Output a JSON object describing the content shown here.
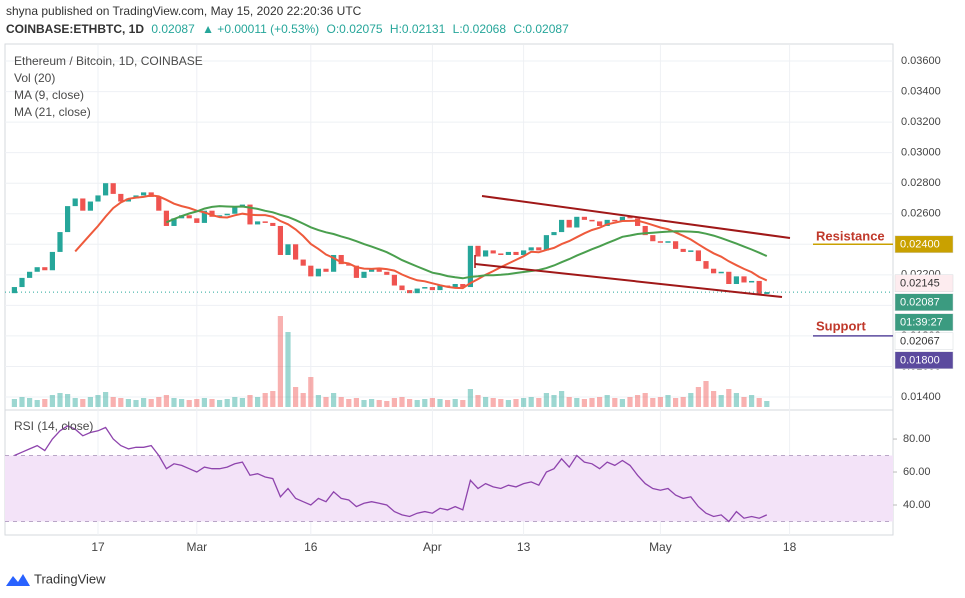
{
  "header": {
    "publisher": "shyna published on TradingView.com, May 15, 2020 22:20:36 UTC",
    "symbol": "COINBASE:ETHBTC, 1D",
    "last": "0.02087",
    "change": "▲ +0.00011 (+0.53%)",
    "o": "O:0.02075",
    "h": "H:0.02131",
    "l": "L:0.02068",
    "c": "C:0.02087"
  },
  "chart_data": [
    {
      "type": "candlestick",
      "title": "Ethereum / Bitcoin, 1D, COINBASE",
      "categories": [
        null,
        null,
        null,
        null,
        null,
        null,
        null,
        null,
        null,
        null,
        null,
        "17",
        null,
        null,
        null,
        null,
        null,
        null,
        null,
        null,
        null,
        null,
        null,
        null,
        "Mar",
        null,
        null,
        null,
        null,
        null,
        null,
        null,
        null,
        null,
        null,
        null,
        null,
        null,
        null,
        "16",
        null,
        null,
        null,
        null,
        null,
        null,
        null,
        null,
        null,
        null,
        null,
        null,
        null,
        null,
        null,
        "Apr",
        null,
        null,
        null,
        null,
        null,
        null,
        null,
        null,
        null,
        null,
        null,
        "13",
        null,
        null,
        null,
        null,
        null,
        null,
        null,
        null,
        null,
        null,
        null,
        null,
        null,
        null,
        null,
        null,
        null,
        "May",
        null,
        null,
        null,
        null,
        null,
        null,
        null,
        null,
        null,
        null,
        null,
        null,
        null,
        null,
        null,
        null,
        "18"
      ],
      "open": [
        0.0208,
        0.0212,
        0.0218,
        0.0222,
        0.0225,
        0.0223,
        0.0235,
        0.0248,
        0.0265,
        0.027,
        0.0262,
        0.0268,
        0.0272,
        0.028,
        0.0273,
        0.0268,
        0.027,
        0.0272,
        0.0274,
        0.0271,
        0.0262,
        0.0252,
        0.0257,
        0.0259,
        0.0257,
        0.0254,
        0.0262,
        0.0258,
        0.0259,
        0.026,
        0.0265,
        0.0266,
        0.0253,
        0.0255,
        0.0254,
        0.0252,
        0.0233,
        0.024,
        0.023,
        0.0226,
        0.0219,
        0.0224,
        0.0222,
        0.0233,
        0.0227,
        0.0226,
        0.0218,
        0.0222,
        0.0224,
        0.0222,
        0.022,
        0.0213,
        0.021,
        0.0208,
        0.0211,
        0.0212,
        0.021,
        0.0213,
        0.0212,
        0.0214,
        0.0212,
        0.0239,
        0.0232,
        0.0236,
        0.0234,
        0.0233,
        0.0235,
        0.0233,
        0.0236,
        0.0238,
        0.0236,
        0.0246,
        0.0248,
        0.0256,
        0.0251,
        0.0258,
        0.0256,
        0.0255,
        0.0252,
        0.0256,
        0.0255,
        0.0258,
        0.0257,
        0.0252,
        0.0246,
        0.0242,
        0.0241,
        0.0242,
        0.0237,
        0.0235,
        0.0236,
        0.0229,
        0.0224,
        0.0221,
        0.0222,
        0.0214,
        0.0219,
        0.0215,
        0.0216,
        0.02075,
        null,
        null,
        null
      ],
      "close": [
        0.0212,
        0.0218,
        0.0222,
        0.0225,
        0.0223,
        0.0235,
        0.0248,
        0.0265,
        0.027,
        0.0262,
        0.0268,
        0.0272,
        0.028,
        0.0273,
        0.0268,
        0.027,
        0.0272,
        0.0274,
        0.0271,
        0.0262,
        0.0252,
        0.0257,
        0.0259,
        0.0257,
        0.0254,
        0.0262,
        0.0258,
        0.0259,
        0.026,
        0.0265,
        0.0266,
        0.0253,
        0.0255,
        0.0254,
        0.0252,
        0.0233,
        0.024,
        0.023,
        0.0226,
        0.0219,
        0.0224,
        0.0222,
        0.0233,
        0.0227,
        0.0226,
        0.0218,
        0.0222,
        0.0224,
        0.0222,
        0.022,
        0.0213,
        0.021,
        0.0208,
        0.0211,
        0.0212,
        0.021,
        0.0213,
        0.0212,
        0.0214,
        0.0212,
        0.0239,
        0.0232,
        0.0236,
        0.0234,
        0.0233,
        0.0235,
        0.0233,
        0.0236,
        0.0238,
        0.0236,
        0.0246,
        0.0248,
        0.0256,
        0.0251,
        0.0258,
        0.0256,
        0.0255,
        0.0252,
        0.0256,
        0.0255,
        0.0258,
        0.0257,
        0.0252,
        0.0246,
        0.0242,
        0.0241,
        0.0242,
        0.0237,
        0.0235,
        0.0236,
        0.0229,
        0.0224,
        0.0221,
        0.0222,
        0.0214,
        0.0219,
        0.0215,
        0.0216,
        0.02075,
        0.02087,
        null,
        null,
        null
      ],
      "up_color": "#26a69a",
      "down_color": "#ef5350",
      "series": [
        {
          "name": "MA (9, close)",
          "period": 9,
          "color": "#ee5a3c"
        },
        {
          "name": "MA (21, close)",
          "period": 21,
          "color": "#4a9f4e"
        }
      ],
      "ylim": [
        0.01328,
        0.03705
      ],
      "yticks": [
        {
          "value": 0.014,
          "label": "0.01400"
        },
        {
          "value": 0.016,
          "label": "0.01600"
        },
        {
          "value": 0.018,
          "label": "0.01800"
        },
        {
          "value": 0.02,
          "label": "0.02000"
        },
        {
          "value": 0.022,
          "label": "0.02200"
        },
        {
          "value": 0.024,
          "label": "0.02400"
        },
        {
          "value": 0.026,
          "label": "0.02600"
        },
        {
          "value": 0.028,
          "label": "0.02800"
        },
        {
          "value": 0.03,
          "label": "0.03000"
        },
        {
          "value": 0.032,
          "label": "0.03200"
        },
        {
          "value": 0.034,
          "label": "0.03400"
        },
        {
          "value": 0.036,
          "label": "0.03600"
        }
      ],
      "grid": true,
      "resistance": "Resistance",
      "support": "Support",
      "price_labels": [
        {
          "value": 0.024,
          "label": "0.02400",
          "color": "#c9a100",
          "text_color": "#ffffff"
        },
        {
          "value": 0.02145,
          "label": "0.02145",
          "color": "#fdecef",
          "text_color": "#333333"
        },
        {
          "value": 0.02087,
          "label": "0.02087",
          "color": "#3b9b80",
          "text_color": "#ffffff"
        },
        {
          "label": "01:39:27",
          "color": "#3b9b80",
          "text_color": "#ffffff"
        },
        {
          "value": 0.02067,
          "label": "0.02067",
          "color": "#ffffff",
          "text_color": "#333333"
        },
        {
          "value": 0.018,
          "label": "0.01800",
          "color": "#5b4a9e",
          "text_color": "#ffffff"
        }
      ]
    },
    {
      "type": "bar",
      "title": "Vol (20)",
      "values": [
        8,
        10,
        9,
        7,
        8,
        12,
        14,
        13,
        9,
        8,
        10,
        12,
        15,
        10,
        9,
        8,
        7,
        9,
        8,
        10,
        12,
        9,
        8,
        7,
        8,
        9,
        8,
        7,
        8,
        10,
        9,
        12,
        10,
        14,
        16,
        91,
        75,
        20,
        14,
        30,
        12,
        10,
        14,
        10,
        8,
        9,
        7,
        8,
        7,
        6,
        9,
        10,
        8,
        7,
        8,
        9,
        8,
        7,
        8,
        7,
        18,
        12,
        10,
        9,
        8,
        7,
        8,
        9,
        10,
        9,
        14,
        12,
        16,
        10,
        9,
        8,
        9,
        10,
        12,
        9,
        8,
        10,
        12,
        14,
        9,
        10,
        12,
        9,
        10,
        14,
        20,
        26,
        16,
        12,
        18,
        14,
        10,
        12,
        9,
        6,
        null,
        null,
        null
      ]
    },
    {
      "type": "line",
      "title": "RSI (14, close)",
      "color": "#8e44ad",
      "band_color": "#f3e3f8",
      "values": [
        70,
        72,
        74,
        76,
        73,
        80,
        85,
        88,
        86,
        82,
        84,
        85,
        87,
        80,
        76,
        74,
        75,
        75,
        76,
        70,
        62,
        65,
        64,
        62,
        60,
        63,
        62,
        62,
        63,
        65,
        66,
        58,
        59,
        57,
        56,
        45,
        50,
        44,
        42,
        40,
        44,
        42,
        48,
        44,
        43,
        39,
        41,
        42,
        41,
        40,
        36,
        34,
        33,
        35,
        36,
        35,
        38,
        37,
        39,
        37,
        55,
        50,
        53,
        51,
        50,
        52,
        51,
        53,
        54,
        52,
        60,
        62,
        68,
        63,
        70,
        66,
        65,
        62,
        66,
        64,
        67,
        64,
        58,
        53,
        50,
        49,
        50,
        46,
        44,
        45,
        39,
        35,
        33,
        34,
        30,
        36,
        32,
        33,
        32,
        34,
        null,
        null,
        null
      ],
      "bands": [
        30,
        70
      ],
      "ylim": [
        21.8,
        95.8
      ],
      "yticks": [
        {
          "value": 40,
          "label": "40.00"
        },
        {
          "value": 60,
          "label": "60.00"
        },
        {
          "value": 80,
          "label": "80.00"
        }
      ]
    }
  ],
  "footer": {
    "brand": "TradingView"
  }
}
